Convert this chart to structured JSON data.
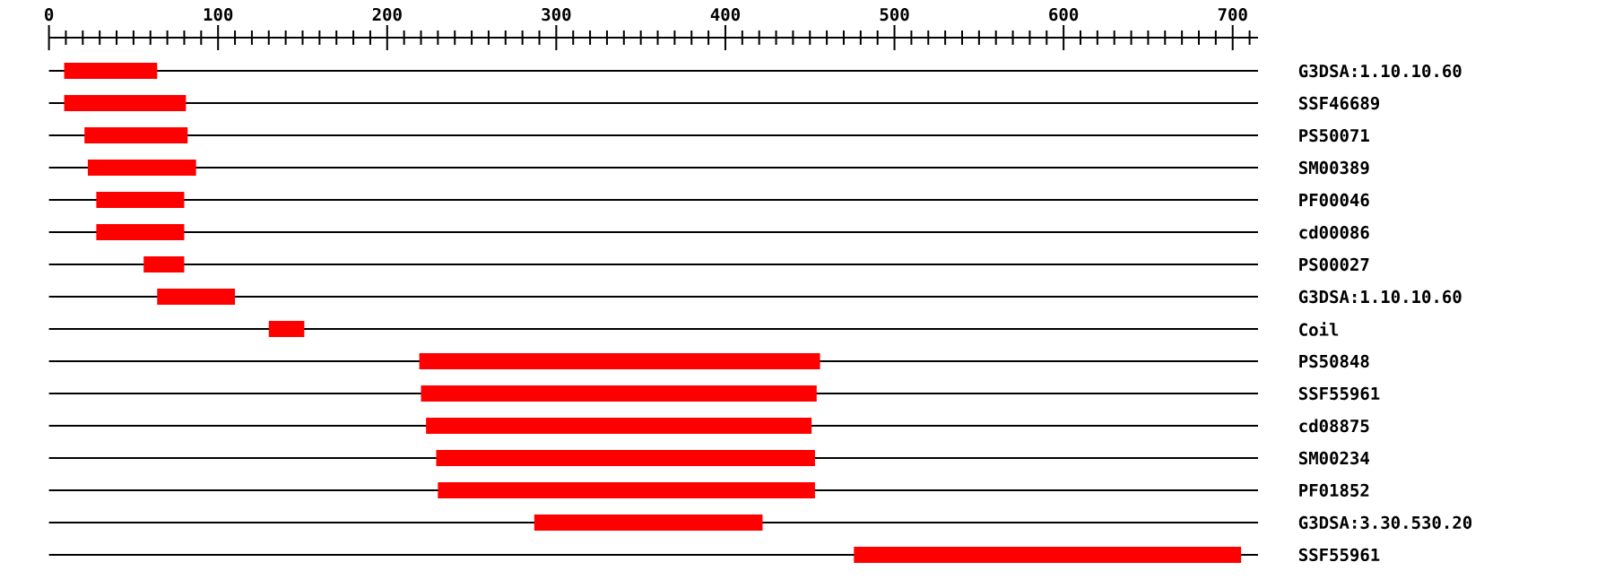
{
  "chart_data": {
    "type": "bar",
    "orientation": "horizontal",
    "categories": [
      "G3DSA:1.10.10.60",
      "SSF46689",
      "PS50071",
      "SM00389",
      "PF00046",
      "cd00086",
      "PS00027",
      "G3DSA:1.10.10.60",
      "Coil",
      "PS50848",
      "SSF55961",
      "cd08875",
      "SM00234",
      "PF01852",
      "G3DSA:3.30.530.20",
      "SSF55961"
    ],
    "base": [
      9,
      9,
      21,
      23,
      28,
      28,
      56,
      64,
      130,
      219,
      220,
      223,
      229,
      230,
      287,
      476
    ],
    "values": [
      55,
      72,
      61,
      64,
      52,
      52,
      24,
      46,
      21,
      237,
      234,
      228,
      224,
      223,
      135,
      229
    ],
    "color": "#ff0000",
    "xlim": [
      0,
      715
    ],
    "xticks": [
      0,
      {
        "value": 10,
        "label": null
      },
      {
        "value": 20,
        "label": null
      },
      {
        "value": 30,
        "label": null
      },
      {
        "value": 40,
        "label": null
      },
      {
        "value": 50,
        "label": null
      },
      {
        "value": 60,
        "label": null
      },
      {
        "value": 70,
        "label": null
      },
      {
        "value": 80,
        "label": null
      },
      {
        "value": 90,
        "label": null
      },
      100,
      {
        "value": 110,
        "label": null
      },
      {
        "value": 120,
        "label": null
      },
      {
        "value": 130,
        "label": null
      },
      {
        "value": 140,
        "label": null
      },
      {
        "value": 150,
        "label": null
      },
      {
        "value": 160,
        "label": null
      },
      {
        "value": 170,
        "label": null
      },
      {
        "value": 180,
        "label": null
      },
      {
        "value": 190,
        "label": null
      },
      200,
      {
        "value": 210,
        "label": null
      },
      {
        "value": 220,
        "label": null
      },
      {
        "value": 230,
        "label": null
      },
      {
        "value": 240,
        "label": null
      },
      {
        "value": 250,
        "label": null
      },
      {
        "value": 260,
        "label": null
      },
      {
        "value": 270,
        "label": null
      },
      {
        "value": 280,
        "label": null
      },
      {
        "value": 290,
        "label": null
      },
      300,
      {
        "value": 310,
        "label": null
      },
      {
        "value": 320,
        "label": null
      },
      {
        "value": 330,
        "label": null
      },
      {
        "value": 340,
        "label": null
      },
      {
        "value": 350,
        "label": null
      },
      {
        "value": 360,
        "label": null
      },
      {
        "value": 370,
        "label": null
      },
      {
        "value": 380,
        "label": null
      },
      {
        "value": 390,
        "label": null
      },
      400,
      {
        "value": 410,
        "label": null
      },
      {
        "value": 420,
        "label": null
      },
      {
        "value": 430,
        "label": null
      },
      {
        "value": 440,
        "label": null
      },
      {
        "value": 450,
        "label": null
      },
      {
        "value": 460,
        "label": null
      },
      {
        "value": 470,
        "label": null
      },
      {
        "value": 480,
        "label": null
      },
      {
        "value": 490,
        "label": null
      },
      500,
      {
        "value": 510,
        "label": null
      },
      {
        "value": 520,
        "label": null
      },
      {
        "value": 530,
        "label": null
      },
      {
        "value": 540,
        "label": null
      },
      {
        "value": 550,
        "label": null
      },
      {
        "value": 560,
        "label": null
      },
      {
        "value": 570,
        "label": null
      },
      {
        "value": 580,
        "label": null
      },
      {
        "value": 590,
        "label": null
      },
      600,
      {
        "value": 610,
        "label": null
      },
      {
        "value": 620,
        "label": null
      },
      {
        "value": 630,
        "label": null
      },
      {
        "value": 640,
        "label": null
      },
      {
        "value": 650,
        "label": null
      },
      {
        "value": 660,
        "label": null
      },
      {
        "value": 670,
        "label": null
      },
      {
        "value": 680,
        "label": null
      },
      {
        "value": 690,
        "label": null
      },
      700,
      {
        "value": 710,
        "label": null
      }
    ],
    "grid": "y"
  }
}
